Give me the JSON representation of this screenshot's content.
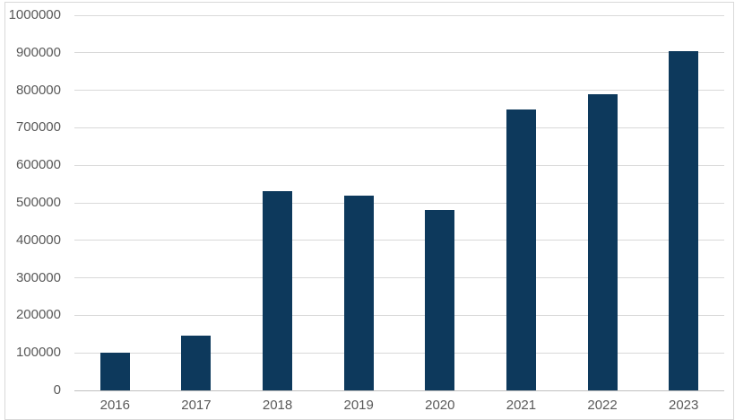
{
  "chart_data": {
    "type": "bar",
    "title": "",
    "xlabel": "",
    "ylabel": "",
    "categories": [
      "2016",
      "2017",
      "2018",
      "2019",
      "2020",
      "2021",
      "2022",
      "2023"
    ],
    "values": [
      100000,
      145000,
      530000,
      520000,
      480000,
      748000,
      790000,
      905000
    ],
    "ylim": [
      0,
      1000000
    ],
    "ytick_step": 100000,
    "ytick_labels": [
      "0",
      "100000",
      "200000",
      "300000",
      "400000",
      "500000",
      "600000",
      "700000",
      "800000",
      "900000",
      "1000000"
    ],
    "grid": true,
    "legend": "none",
    "colors": {
      "bar_fill": "#0d395c",
      "gridline": "#d9d9d9",
      "axis_line": "#bfbfbf",
      "tick_label": "#595959",
      "background": "#ffffff",
      "frame_border": "#d9d9d9"
    }
  }
}
